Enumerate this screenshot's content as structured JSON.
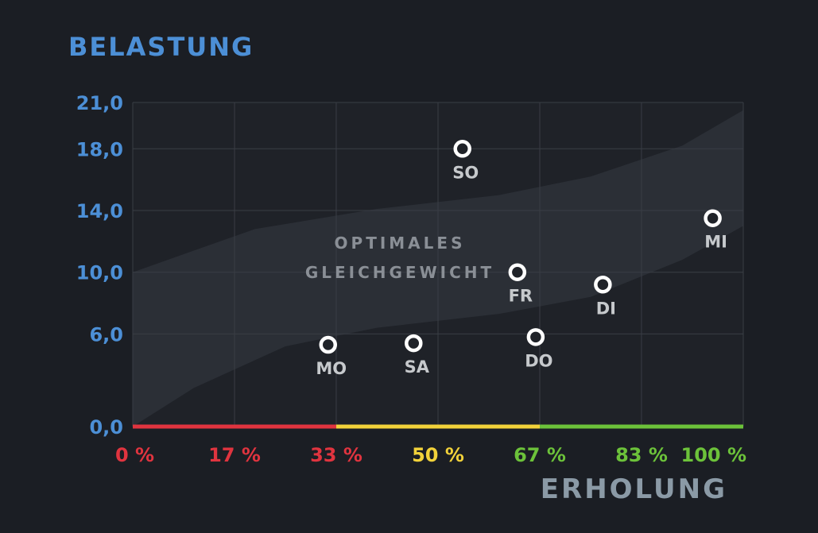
{
  "chart_data": {
    "type": "scatter",
    "ylabel": "BELASTUNG",
    "xlabel": "ERHOLUNG",
    "xlim": [
      0,
      100
    ],
    "ylim": [
      0,
      21
    ],
    "y_ticks": [
      {
        "value": 0,
        "label": "0,0"
      },
      {
        "value": 6,
        "label": "6,0"
      },
      {
        "value": 10,
        "label": "10,0"
      },
      {
        "value": 14,
        "label": "14,0"
      },
      {
        "value": 18,
        "label": "18,0"
      },
      {
        "value": 21,
        "label": "21,0"
      }
    ],
    "x_ticks": [
      {
        "value": 0,
        "label": "0 %",
        "color": "#e0343f"
      },
      {
        "value": 16.67,
        "label": "17 %",
        "color": "#e0343f"
      },
      {
        "value": 33.33,
        "label": "33 %",
        "color": "#e0343f"
      },
      {
        "value": 50,
        "label": "50 %",
        "color": "#f2d23a"
      },
      {
        "value": 66.67,
        "label": "67 %",
        "color": "#6cc23a"
      },
      {
        "value": 83.33,
        "label": "83 %",
        "color": "#6cc23a"
      },
      {
        "value": 100,
        "label": "100 %",
        "color": "#6cc23a"
      }
    ],
    "color_zones": [
      {
        "from": 0,
        "to": 33.33,
        "color": "#e0343f"
      },
      {
        "from": 33.33,
        "to": 66.67,
        "color": "#f2d23a"
      },
      {
        "from": 66.67,
        "to": 100,
        "color": "#6cc23a"
      }
    ],
    "points": [
      {
        "label": "MO",
        "x": 32,
        "y": 5.3
      },
      {
        "label": "DI",
        "x": 77,
        "y": 9.2
      },
      {
        "label": "MI",
        "x": 95,
        "y": 13.5
      },
      {
        "label": "DO",
        "x": 66,
        "y": 5.8
      },
      {
        "label": "FR",
        "x": 63,
        "y": 10.0
      },
      {
        "label": "SA",
        "x": 46,
        "y": 5.4
      },
      {
        "label": "SO",
        "x": 54,
        "y": 18.0
      }
    ],
    "band": {
      "label_lines": [
        "OPTIMALES",
        "GLEICHGEWICHT"
      ],
      "upper": [
        [
          0,
          10
        ],
        [
          20,
          12.8
        ],
        [
          40,
          14.1
        ],
        [
          60,
          15.0
        ],
        [
          75,
          16.2
        ],
        [
          90,
          18.2
        ],
        [
          100,
          20.5
        ]
      ],
      "lower": [
        [
          0,
          0
        ],
        [
          10,
          2.5
        ],
        [
          25,
          5.2
        ],
        [
          40,
          6.4
        ],
        [
          60,
          7.3
        ],
        [
          75,
          8.4
        ],
        [
          90,
          10.8
        ],
        [
          100,
          13.0
        ]
      ]
    },
    "grid": true,
    "colors": {
      "axis_label": "#4c8fd6",
      "tick_y": "#4c8fd6",
      "xlabel": "#8b9aa6",
      "band": "#2b2f36",
      "band_text": "#8a8f96",
      "point": "#ffffff",
      "point_label": "#c6c9cc"
    }
  }
}
